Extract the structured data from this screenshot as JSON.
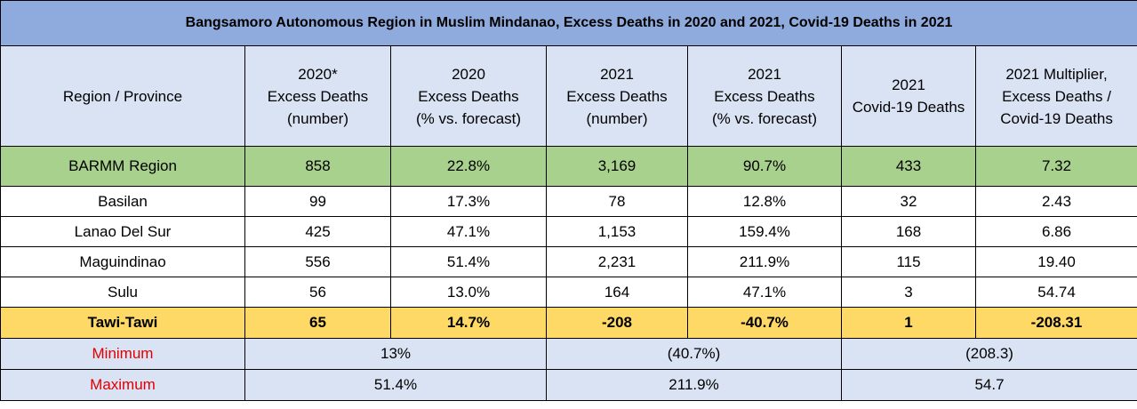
{
  "title": "Bangsamoro  Autonomous  Region in Muslim Mindanao,  Excess Deaths in 2020 and 2021, Covid-19  Deaths in 2021",
  "columns": [
    {
      "lines": [
        "Region / Province"
      ]
    },
    {
      "lines": [
        "2020*",
        "Excess Deaths",
        "(number)"
      ]
    },
    {
      "lines": [
        "2020",
        "Excess Deaths",
        "(% vs. forecast)"
      ]
    },
    {
      "lines": [
        "2021",
        "Excess Deaths",
        "(number)"
      ]
    },
    {
      "lines": [
        "2021",
        "Excess Deaths",
        "(% vs. forecast)"
      ]
    },
    {
      "lines": [
        "2021",
        "Covid-19 Deaths"
      ]
    },
    {
      "lines": [
        "2021 Multiplier,",
        "Excess Deaths /",
        "Covid-19 Deaths"
      ]
    }
  ],
  "region_row": [
    "BARMM  Region",
    "858",
    "22.8%",
    "3,169",
    "90.7%",
    "433",
    "7.32"
  ],
  "province_rows": [
    [
      "Basilan",
      "99",
      "17.3%",
      "78",
      "12.8%",
      "32",
      "2.43"
    ],
    [
      "Lanao Del Sur",
      "425",
      "47.1%",
      "1,153",
      "159.4%",
      "168",
      "6.86"
    ],
    [
      "Maguindinao",
      "556",
      "51.4%",
      "2,231",
      "211.9%",
      "115",
      "19.40"
    ],
    [
      "Sulu",
      "56",
      "13.0%",
      "164",
      "47.1%",
      "3",
      "54.74"
    ]
  ],
  "highlight_row": [
    "Tawi-Tawi",
    "65",
    "14.7%",
    "-208",
    "-40.7%",
    "1",
    "-208.31"
  ],
  "stats": [
    {
      "label": "Minimum",
      "pct_2020": "13%",
      "pct_2021": "(40.7%)",
      "multiplier": "(208.3)"
    },
    {
      "label": "Maximum",
      "pct_2020": "51.4%",
      "pct_2021": "211.9%",
      "multiplier": "54.7"
    }
  ],
  "colors": {
    "title_bg": "#8faadc",
    "header_bg": "#dae3f3",
    "region_bg": "#a9d18e",
    "highlight_bg": "#ffd966",
    "stat_label": "#e00000"
  }
}
